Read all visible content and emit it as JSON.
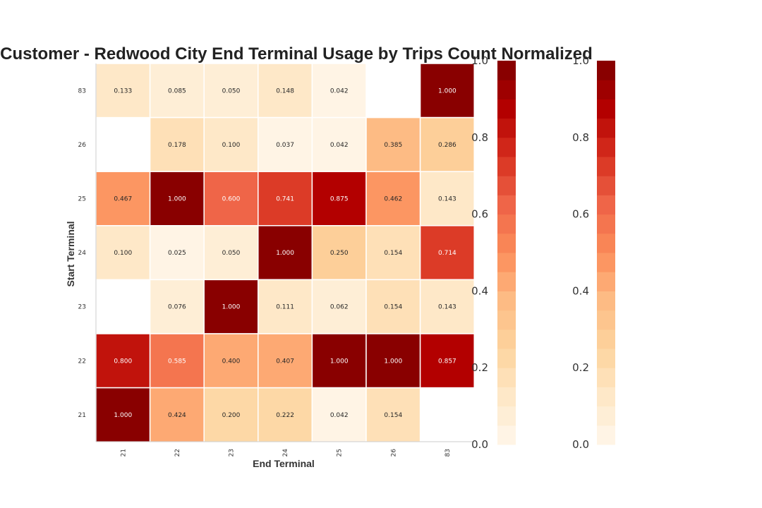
{
  "chart_data": {
    "type": "heatmap",
    "title": "Customer - Redwood City End Terminal Usage by Trips Count Normalized",
    "xlabel": "End Terminal",
    "ylabel": "Start Terminal",
    "x_categories": [
      "21",
      "22",
      "23",
      "24",
      "25",
      "26",
      "83"
    ],
    "y_categories": [
      "83",
      "26",
      "25",
      "24",
      "23",
      "22",
      "21"
    ],
    "values": [
      [
        0.133,
        0.085,
        0.05,
        0.148,
        0.042,
        null,
        1.0
      ],
      [
        null,
        0.178,
        0.1,
        0.037,
        0.042,
        0.385,
        0.286
      ],
      [
        0.467,
        1.0,
        0.6,
        0.741,
        0.875,
        0.462,
        0.143
      ],
      [
        0.1,
        0.025,
        0.05,
        1.0,
        0.25,
        0.154,
        0.714
      ],
      [
        null,
        0.076,
        1.0,
        0.111,
        0.062,
        0.154,
        0.143
      ],
      [
        0.8,
        0.585,
        0.4,
        0.407,
        1.0,
        1.0,
        0.857
      ],
      [
        1.0,
        0.424,
        0.2,
        0.222,
        0.042,
        0.154,
        null
      ]
    ],
    "value_range": [
      0,
      1
    ],
    "colormap": "OrRd",
    "colorbar_levels": 20,
    "colorbar_ticks": [
      "0.0",
      "0.2",
      "0.4",
      "0.6",
      "0.8",
      "1.0"
    ],
    "colorbar_count": 2,
    "grid": false
  },
  "colors": {
    "cmap_stops": [
      "#fff7ec",
      "#fee8c8",
      "#fdd49e",
      "#fdbb84",
      "#fc8d59",
      "#ef6548",
      "#d7301f",
      "#b30000",
      "#7f0000"
    ],
    "cell_border": "#ffffff",
    "axis_line": "#cccccc"
  }
}
